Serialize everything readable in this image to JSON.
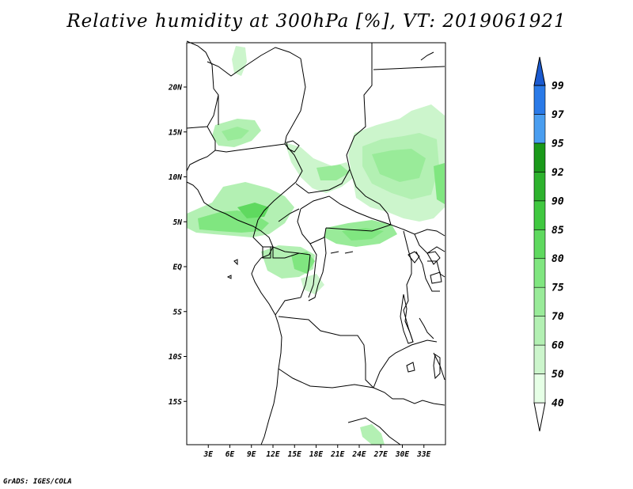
{
  "title": "Relative humidity at 300hPa [%], VT: 2019061921",
  "credit": "GrADS: IGES/COLA",
  "map": {
    "lon_range": [
      0,
      36
    ],
    "lat_range": [
      -20,
      25
    ],
    "lat_ticks": [
      {
        "value": 20,
        "label": "20N"
      },
      {
        "value": 15,
        "label": "15N"
      },
      {
        "value": 10,
        "label": "10N"
      },
      {
        "value": 5,
        "label": "5N"
      },
      {
        "value": 0,
        "label": "EQ"
      },
      {
        "value": -5,
        "label": "5S"
      },
      {
        "value": -10,
        "label": "10S"
      },
      {
        "value": -15,
        "label": "15S"
      }
    ],
    "lon_ticks": [
      {
        "value": 3,
        "label": "3E"
      },
      {
        "value": 6,
        "label": "6E"
      },
      {
        "value": 9,
        "label": "9E"
      },
      {
        "value": 12,
        "label": "12E"
      },
      {
        "value": 15,
        "label": "15E"
      },
      {
        "value": 18,
        "label": "18E"
      },
      {
        "value": 21,
        "label": "21E"
      },
      {
        "value": 24,
        "label": "24E"
      },
      {
        "value": 27,
        "label": "27E"
      },
      {
        "value": 30,
        "label": "30E"
      },
      {
        "value": 33,
        "label": "33E"
      }
    ]
  },
  "colorbar": {
    "levels": [
      {
        "label": "40",
        "color": "#e6ffe6"
      },
      {
        "label": "50",
        "color": "#ccf5cc"
      },
      {
        "label": "60",
        "color": "#b3f0b3"
      },
      {
        "label": "70",
        "color": "#99eb99"
      },
      {
        "label": "75",
        "color": "#80e680"
      },
      {
        "label": "80",
        "color": "#5fd95f"
      },
      {
        "label": "85",
        "color": "#40c840"
      },
      {
        "label": "90",
        "color": "#2db22d"
      },
      {
        "label": "92",
        "color": "#1a991a"
      },
      {
        "label": "95",
        "color": "#4a9ef0"
      },
      {
        "label": "97",
        "color": "#2a7ae8"
      },
      {
        "label": "99",
        "color": "#1a5ad0"
      }
    ]
  }
}
